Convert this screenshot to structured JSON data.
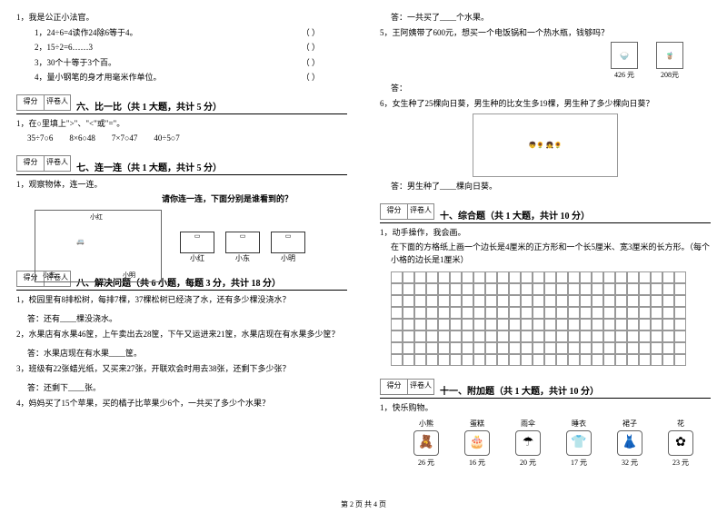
{
  "left": {
    "q1": {
      "title": "1，我是公正小法官。",
      "items": [
        "1，24÷6=4读作24除6等于4。",
        "2，15÷2=6……3",
        "3，30个十等于3个百。",
        "4，量小钢笔的身才用毫米作单位。"
      ]
    },
    "sec6": {
      "title": "六、比一比（共 1 大题，共计 5 分）",
      "q": "1，在○里填上\">\"、\"<\"或\"=\"。",
      "exp": "35÷7○6        8×6○48        7×7○47        40÷5○7"
    },
    "sec7": {
      "title": "七、连一连（共 1 大题，共计 5 分）",
      "q": "1，观察物体，连一连。",
      "hint": "请你连一连，下面分别是谁看到的？",
      "names": [
        "小红",
        "小东",
        "小明"
      ],
      "scene_labels": {
        "top": "小红",
        "left": "小东",
        "right": "小明"
      }
    },
    "sec8": {
      "title": "八、解决问题（共 6 小题，每题 3 分，共计 18 分）",
      "q1": "1，校园里有8排松树，每排7棵，37棵松树已经浇了水，还有多少棵没浇水？",
      "a1": "答：还有____棵没浇水。",
      "q2": "2，水果店有水果46筐，上午卖出去28筐，下午又运进来21筐，水果店现在有水果多少筐？",
      "a2": "答：水果店现在有水果____筐。",
      "q3": "3，班级有22张蜡光纸，又买来27张，开联欢会时用去38张，还剩下多少张？",
      "a3": "答：还剩下____张。",
      "q4": "4，妈妈买了15个苹果，买的橘子比苹果少6个，一共买了多少个水果？"
    },
    "score": {
      "c1": "得分",
      "c2": "评卷人"
    }
  },
  "right": {
    "a4": "答：一共买了____个水果。",
    "q5": "5，王阿姨带了600元，想买一个电饭锅和一个热水瓶，钱够吗？",
    "prices": {
      "p1": "426 元",
      "p2": "208元"
    },
    "a5": "答：",
    "q6": "6，女生种了25棵向日葵，男生种的比女生多19棵，男生种了多少棵向日葵？",
    "a6": "答：男生种了____棵向日葵。",
    "sec10": {
      "title": "十、综合题（共 1 大题，共计 10 分）",
      "q": "1，动手操作，我会画。",
      "desc": "在下面的方格纸上画一个边长是4厘米的正方形和一个长5厘米、宽3厘米的长方形。（每个小格的边长是1厘米）"
    },
    "sec11": {
      "title": "十一、附加题（共 1 大题，共计 10 分）",
      "q": "1，快乐购物。",
      "items": [
        {
          "name": "小熊",
          "icon": "🧸",
          "price": "26 元"
        },
        {
          "name": "蛋糕",
          "icon": "🎂",
          "price": "16 元"
        },
        {
          "name": "雨伞",
          "icon": "☂",
          "price": "20 元"
        },
        {
          "name": "睡衣",
          "icon": "👕",
          "price": "17 元"
        },
        {
          "name": "裙子",
          "icon": "👗",
          "price": "32 元"
        },
        {
          "name": "花",
          "icon": "✿",
          "price": "23 元"
        }
      ]
    },
    "score": {
      "c1": "得分",
      "c2": "评卷人"
    }
  },
  "footer": "第 2 页 共 4 页",
  "grid": {
    "rows": 8,
    "cols": 25
  }
}
